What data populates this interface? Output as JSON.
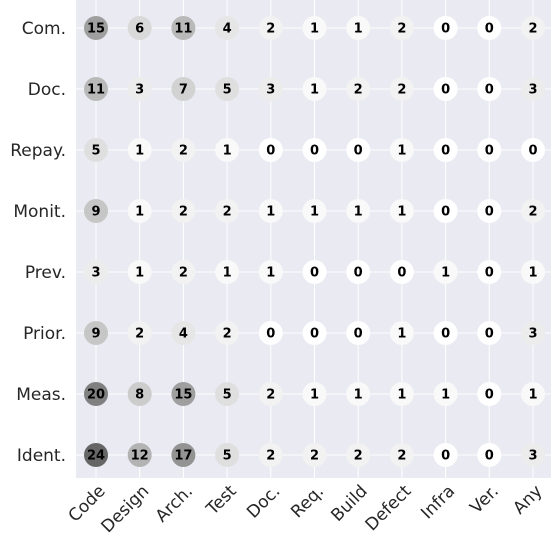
{
  "chart_data": {
    "type": "bubble-heatmap",
    "x_categories": [
      "Code",
      "Design",
      "Arch.",
      "Test",
      "Doc.",
      "Req.",
      "Build",
      "Defect",
      "Infra",
      "Ver.",
      "Any"
    ],
    "y_categories": [
      "Com.",
      "Doc.",
      "Repay.",
      "Monit.",
      "Prev.",
      "Prior.",
      "Meas.",
      "Ident."
    ],
    "values": [
      [
        15,
        6,
        11,
        4,
        2,
        1,
        1,
        2,
        0,
        0,
        2
      ],
      [
        11,
        3,
        7,
        5,
        3,
        1,
        2,
        2,
        0,
        0,
        3
      ],
      [
        5,
        1,
        2,
        1,
        0,
        0,
        0,
        1,
        0,
        0,
        0
      ],
      [
        9,
        1,
        2,
        2,
        1,
        1,
        1,
        1,
        0,
        0,
        2
      ],
      [
        3,
        1,
        2,
        1,
        1,
        0,
        0,
        0,
        1,
        0,
        1
      ],
      [
        9,
        2,
        4,
        2,
        0,
        0,
        0,
        1,
        0,
        0,
        3
      ],
      [
        20,
        8,
        15,
        5,
        2,
        1,
        1,
        1,
        1,
        0,
        1
      ],
      [
        24,
        12,
        17,
        5,
        2,
        2,
        2,
        2,
        0,
        0,
        3
      ]
    ],
    "title": "",
    "xlabel": "",
    "ylabel": "",
    "grid": true,
    "colors": {
      "background": "#eaeaf2",
      "grid": "#ffffff",
      "scale_low": "#ffffff",
      "scale_high": "#666666",
      "text": "#000000"
    }
  }
}
